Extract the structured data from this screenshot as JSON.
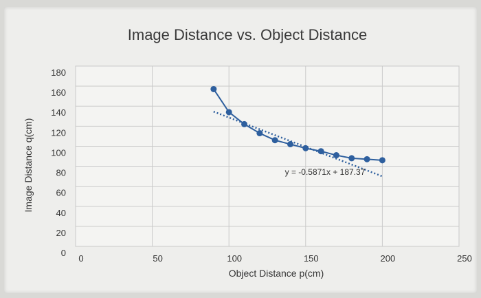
{
  "chart_data": {
    "type": "scatter",
    "title": "Image Distance vs. Object Distance",
    "xlabel": "Object Distance p(cm)",
    "ylabel": "Image Distance q(cm)",
    "xlim": [
      0,
      250
    ],
    "ylim": [
      0,
      180
    ],
    "x_ticks": [
      0,
      50,
      100,
      150,
      200,
      250
    ],
    "y_ticks": [
      0,
      20,
      40,
      60,
      80,
      100,
      120,
      140,
      160,
      180
    ],
    "x_tick_labels": [
      "0",
      "50",
      "100",
      "150",
      "200",
      "250"
    ],
    "y_tick_labels": [
      "0",
      "20",
      "40",
      "60",
      "80",
      "100",
      "120",
      "140",
      "160",
      "180"
    ],
    "grid": true,
    "series": [
      {
        "x": [
          90,
          100,
          110,
          120,
          130,
          140,
          150,
          160,
          170,
          180,
          190,
          200
        ],
        "y": [
          157,
          134,
          122,
          113,
          106,
          102,
          98,
          95,
          91,
          88,
          87,
          86
        ],
        "color": "#2e5f9e"
      }
    ],
    "trendline": {
      "slope": -0.5871,
      "intercept": 187.37,
      "x_range": [
        90,
        200
      ],
      "label": "y = -0.5871x + 187.37",
      "color": "#2e5f9e"
    }
  }
}
